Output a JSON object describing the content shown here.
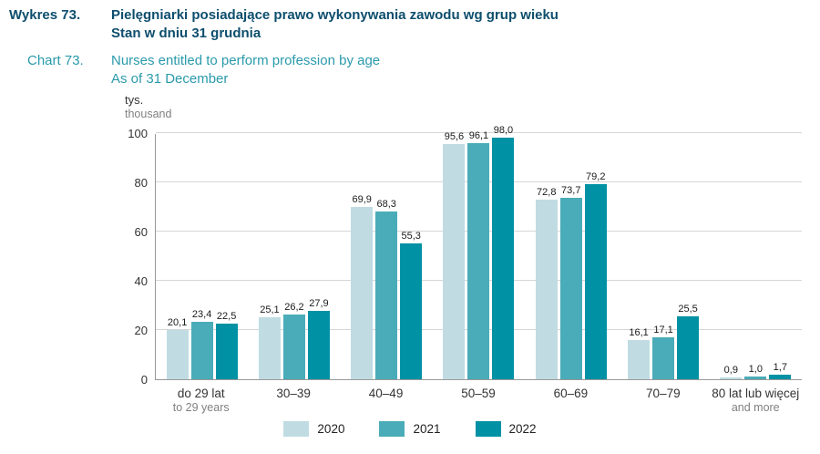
{
  "header": {
    "label_pl": "Wykres 73.",
    "title_pl_line1": "Pielęgniarki posiadające prawo wykonywania zawodu wg grup wieku",
    "title_pl_line2": "Stan w dniu 31 grudnia",
    "label_en": "Chart 73.",
    "title_en_line1": "Nurses entitled to perform profession by age",
    "title_en_line2": "As of 31 December"
  },
  "axis_unit": {
    "pl": "tys.",
    "en": "thousand"
  },
  "chart_data": {
    "type": "bar",
    "title": "Pielęgniarki posiadające prawo wykonywania zawodu wg grup wieku / Nurses entitled to perform profession by age",
    "categories": [
      "do 29 lat",
      "30–39",
      "40–49",
      "50–59",
      "60–69",
      "70–79",
      "80 lat lub więcej"
    ],
    "categories_sub": [
      "to 29 years",
      "",
      "",
      "",
      "",
      "",
      "and more"
    ],
    "series": [
      {
        "name": "2020",
        "color": "#c0dce2",
        "values": [
          20.1,
          25.1,
          69.9,
          95.6,
          72.8,
          16.1,
          0.9
        ]
      },
      {
        "name": "2021",
        "color": "#4aacb8",
        "values": [
          23.4,
          26.2,
          68.3,
          96.1,
          73.7,
          17.1,
          1.0
        ]
      },
      {
        "name": "2022",
        "color": "#0091a4",
        "values": [
          22.5,
          27.9,
          55.3,
          98.0,
          79.2,
          25.5,
          1.7
        ]
      }
    ],
    "ylabel": "tys. / thousand",
    "ylim": [
      0,
      100
    ],
    "yticks": [
      0,
      20,
      40,
      60,
      80,
      100
    ],
    "grid": true,
    "legend_position": "bottom",
    "decimal_separator": ","
  }
}
